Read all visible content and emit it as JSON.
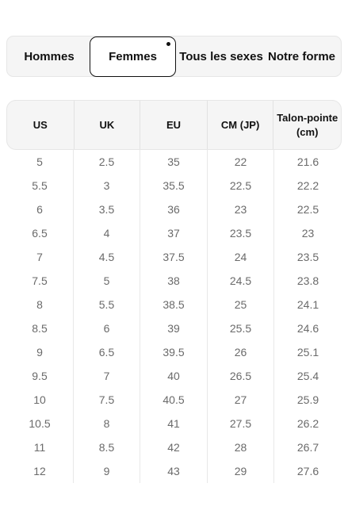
{
  "tabs": [
    {
      "label": "Hommes"
    },
    {
      "label": "Femmes"
    },
    {
      "label": "Tous les sexes"
    },
    {
      "label": "Notre forme"
    }
  ],
  "table": {
    "headers": [
      "US",
      "UK",
      "EU",
      "CM (JP)",
      "Talon-pointe (cm)"
    ],
    "rows": [
      [
        "5",
        "2.5",
        "35",
        "22",
        "21.6"
      ],
      [
        "5.5",
        "3",
        "35.5",
        "22.5",
        "22.2"
      ],
      [
        "6",
        "3.5",
        "36",
        "23",
        "22.5"
      ],
      [
        "6.5",
        "4",
        "37",
        "23.5",
        "23"
      ],
      [
        "7",
        "4.5",
        "37.5",
        "24",
        "23.5"
      ],
      [
        "7.5",
        "5",
        "38",
        "24.5",
        "23.8"
      ],
      [
        "8",
        "5.5",
        "38.5",
        "25",
        "24.1"
      ],
      [
        "8.5",
        "6",
        "39",
        "25.5",
        "24.6"
      ],
      [
        "9",
        "6.5",
        "39.5",
        "26",
        "25.1"
      ],
      [
        "9.5",
        "7",
        "40",
        "26.5",
        "25.4"
      ],
      [
        "10",
        "7.5",
        "40.5",
        "27",
        "25.9"
      ],
      [
        "10.5",
        "8",
        "41",
        "27.5",
        "26.2"
      ],
      [
        "11",
        "8.5",
        "42",
        "28",
        "26.7"
      ],
      [
        "12",
        "9",
        "43",
        "29",
        "27.6"
      ]
    ]
  }
}
